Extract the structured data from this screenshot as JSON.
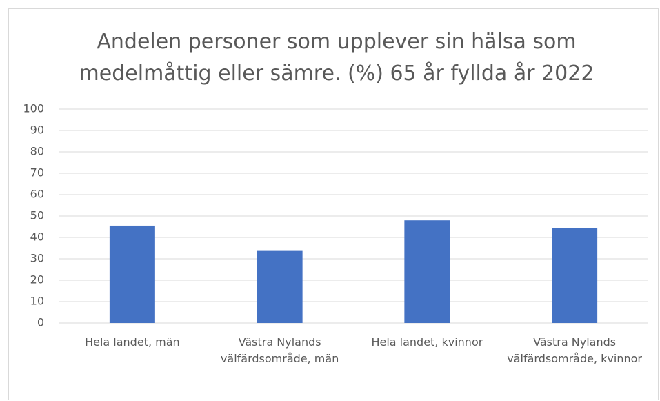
{
  "chart_data": {
    "type": "bar",
    "title": "Andelen personer som upplever sin hälsa som medelmåttig eller sämre. (%) 65 år fyllda år 2022",
    "categories": [
      "Hela landet, män",
      "Västra Nylands välfärdsområde, män",
      "Hela landet, kvinnor",
      "Västra Nylands välfärdsområde, kvinnor"
    ],
    "values": [
      45.5,
      34,
      48,
      44.2
    ],
    "color": "#4472c4",
    "ylim": [
      0,
      100
    ],
    "yticks": [
      0,
      10,
      20,
      30,
      40,
      50,
      60,
      70,
      80,
      90,
      100
    ],
    "grid": true
  }
}
